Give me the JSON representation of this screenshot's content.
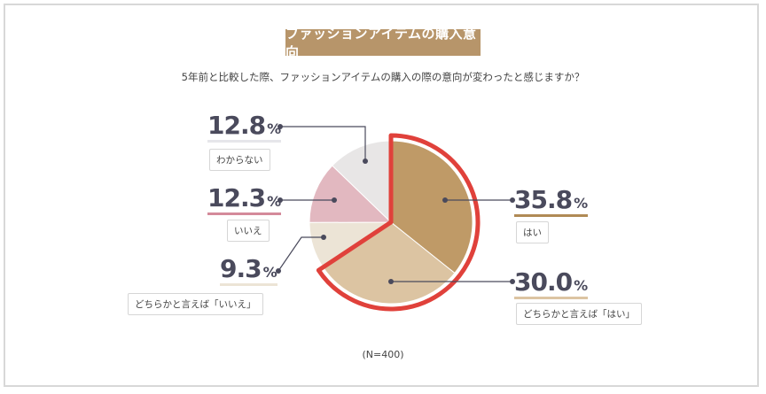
{
  "title": "ファッションアイテムの購入意向",
  "question": "5年前と比較した際、ファッションアイテムの購入の際の意向が変わったと感じますか？",
  "note": "(N=400)",
  "chart_data": {
    "type": "pie",
    "title": "ファッションアイテムの購入意向",
    "slices": [
      {
        "label": "はい",
        "value": 35.8,
        "value_text": "35.8",
        "unit": "%",
        "color": "#bf9a67",
        "highlight": true
      },
      {
        "label": "どちらかと言えば「はい」",
        "value": 30.0,
        "value_text": "30.0",
        "unit": "%",
        "color": "#dcc4a2",
        "highlight": true
      },
      {
        "label": "どちらかと言えば「いいえ」",
        "value": 9.3,
        "value_text": "9.3",
        "unit": "%",
        "color": "#ece4d6",
        "highlight": false
      },
      {
        "label": "いいえ",
        "value": 12.3,
        "value_text": "12.3",
        "unit": "%",
        "color": "#e2b8c0",
        "highlight": false
      },
      {
        "label": "わからない",
        "value": 12.8,
        "value_text": "12.8",
        "unit": "%",
        "color": "#e8e6e6",
        "highlight": false
      }
    ],
    "highlight_color": "#e0413b",
    "underline_colors": {
      "はい": "#b08a55",
      "どちらかと言えば「はい」": "#dcc4a2",
      "どちらかと言えば「いいえ」": "#ece4d6",
      "いいえ": "#d48a9a",
      "わからない": "#e6e6ea"
    }
  }
}
